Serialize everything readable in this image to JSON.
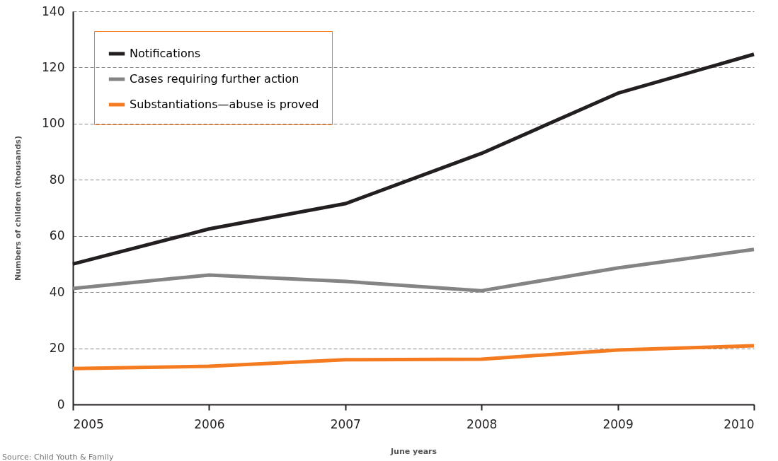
{
  "chart_data": {
    "type": "line",
    "xlabel": "June years",
    "ylabel": "Numbers of children (thousands)",
    "x": [
      2005,
      2006,
      2007,
      2008,
      2009,
      2010
    ],
    "series": [
      {
        "name": "Notifications",
        "color": "#231f20",
        "values": [
          50,
          62.5,
          71.5,
          89.4,
          110.8,
          124.7
        ]
      },
      {
        "name": "Cases requiring further action",
        "color": "#848484",
        "values": [
          41.3,
          46.1,
          43.8,
          40.5,
          48.6,
          55.2
        ]
      },
      {
        "name": "Substantiations—abuse is proved",
        "color": "#f47b20",
        "values": [
          12.8,
          13.6,
          15.9,
          16.1,
          19.4,
          20.9
        ]
      }
    ],
    "xlim": [
      2005,
      2010
    ],
    "xticks": [
      2005,
      2006,
      2007,
      2008,
      2009,
      2010
    ],
    "ylim": [
      0,
      140
    ],
    "yticks": [
      0,
      20,
      40,
      60,
      80,
      100,
      120,
      140
    ],
    "grid": "y",
    "legend": "top left",
    "marker": "none",
    "line_style": "solid",
    "annotations": [
      "Source: Child Youth & Family"
    ]
  }
}
